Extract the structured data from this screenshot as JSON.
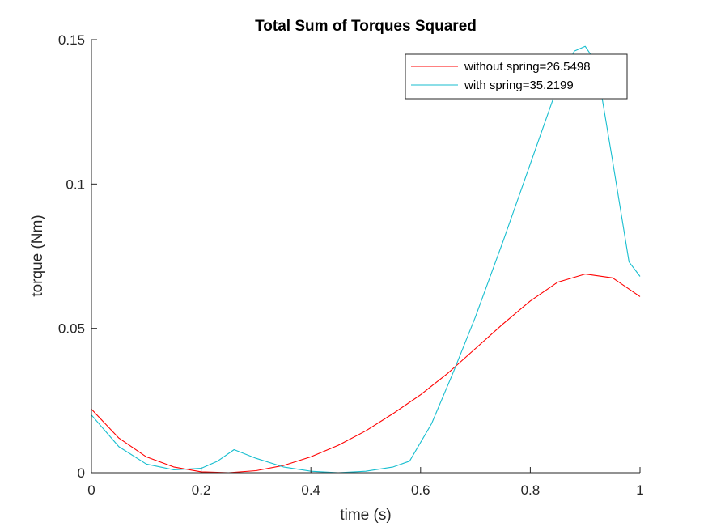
{
  "chart_data": {
    "type": "line",
    "title": "Total Sum of Torques Squared",
    "xlabel": "time (s)",
    "ylabel": "torque (Nm)",
    "xlim": [
      0,
      1
    ],
    "ylim": [
      0,
      0.15
    ],
    "xticks": [
      0,
      0.2,
      0.4,
      0.6,
      0.8,
      1
    ],
    "xtick_labels": [
      "0",
      "0.2",
      "0.4",
      "0.6",
      "0.8",
      "1"
    ],
    "yticks": [
      0,
      0.05,
      0.1,
      0.15
    ],
    "ytick_labels": [
      "0",
      "0.05",
      "0.1",
      "0.15"
    ],
    "grid": false,
    "legend_position": "top-right",
    "series": [
      {
        "name": "without spring=26.5498",
        "color": "#ff0000",
        "x": [
          0,
          0.05,
          0.1,
          0.15,
          0.2,
          0.25,
          0.3,
          0.35,
          0.4,
          0.45,
          0.5,
          0.55,
          0.6,
          0.65,
          0.7,
          0.75,
          0.8,
          0.85,
          0.9,
          0.95,
          1.0
        ],
        "y": [
          0.022,
          0.012,
          0.0055,
          0.002,
          0.0003,
          0.0,
          0.0007,
          0.0025,
          0.0055,
          0.0095,
          0.0145,
          0.0205,
          0.027,
          0.0345,
          0.043,
          0.0515,
          0.0595,
          0.066,
          0.0688,
          0.0675,
          0.061
        ]
      },
      {
        "name": "with spring=35.2199",
        "color": "#17becf",
        "x": [
          0,
          0.05,
          0.1,
          0.15,
          0.2,
          0.23,
          0.26,
          0.3,
          0.35,
          0.4,
          0.45,
          0.5,
          0.55,
          0.58,
          0.62,
          0.66,
          0.7,
          0.75,
          0.8,
          0.85,
          0.88,
          0.9,
          0.92,
          0.95,
          0.98,
          1.0
        ],
        "y": [
          0.02,
          0.009,
          0.003,
          0.001,
          0.0015,
          0.004,
          0.008,
          0.005,
          0.002,
          0.0005,
          0.0,
          0.0005,
          0.002,
          0.004,
          0.017,
          0.035,
          0.054,
          0.08,
          0.107,
          0.134,
          0.146,
          0.1477,
          0.142,
          0.108,
          0.073,
          0.068
        ]
      }
    ]
  }
}
